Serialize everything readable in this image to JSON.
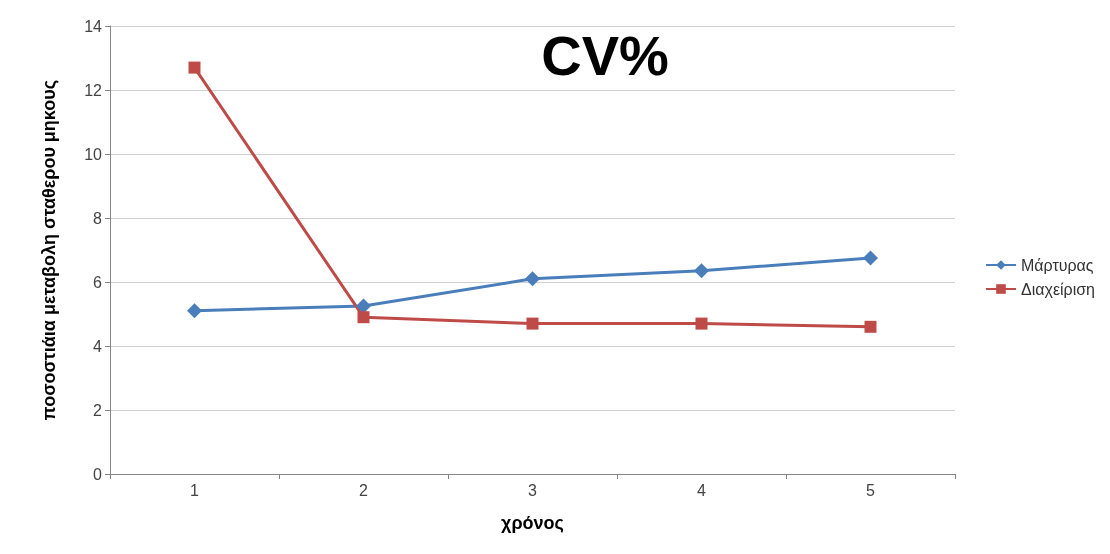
{
  "chart_data": {
    "type": "line",
    "title": "CV%",
    "xlabel": "χρόνος",
    "ylabel": "ποσοστιάια μεταβολη σταθερου μηκους",
    "categories": [
      "1",
      "2",
      "3",
      "4",
      "5"
    ],
    "series": [
      {
        "name": "Μάρτυρας",
        "color": "#4a7ebb",
        "marker": "diamond",
        "values": [
          5.1,
          5.25,
          6.1,
          6.35,
          6.75
        ]
      },
      {
        "name": "Διαχείριση",
        "color": "#be4b48",
        "marker": "square",
        "values": [
          12.7,
          4.9,
          4.7,
          4.7,
          4.6
        ]
      }
    ],
    "ylim": [
      0,
      14
    ],
    "yticks": [
      0,
      2,
      4,
      6,
      8,
      10,
      12,
      14
    ],
    "grid": "y",
    "legend": "right",
    "line_style": "solid"
  }
}
